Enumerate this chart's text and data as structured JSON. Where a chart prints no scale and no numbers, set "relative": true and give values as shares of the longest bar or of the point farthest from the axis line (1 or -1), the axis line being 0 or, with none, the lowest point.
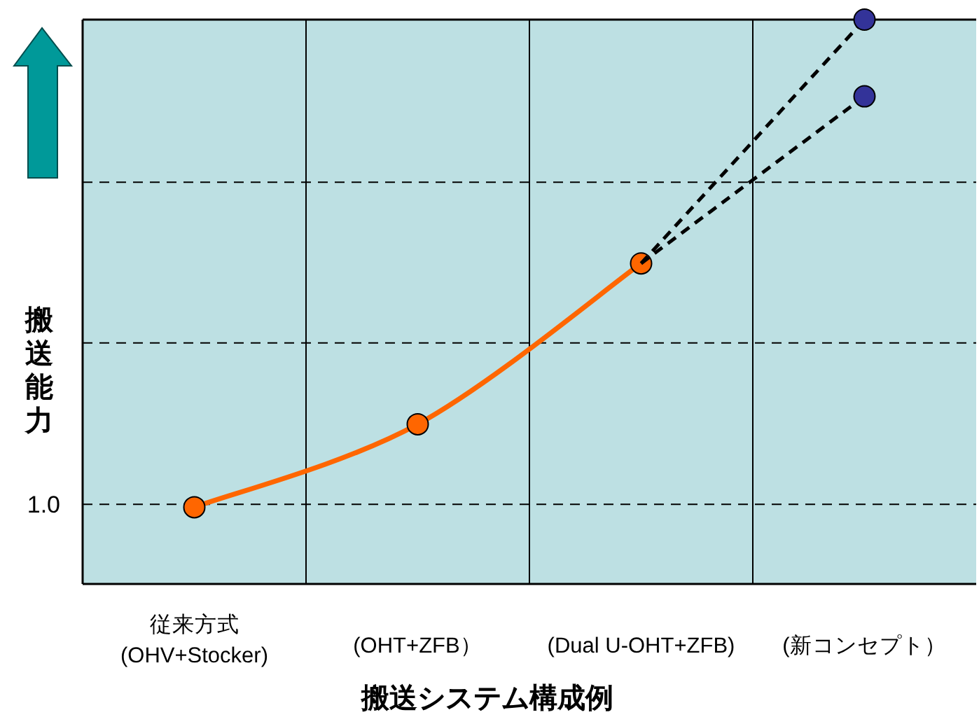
{
  "chart_data": {
    "type": "line",
    "relative": true,
    "xlabel": "搬送システム構成例",
    "ylabel": "搬送能力",
    "categories": [
      "従来方式\n(OHV+Stocker)",
      "(OHT+ZFB）",
      "(Dual U-OHT+ZFB)",
      "(新コンセプト）"
    ],
    "series": [
      {
        "color": "#ff6600",
        "marker": "circle",
        "line_style": "solid",
        "values": [
          0.136,
          0.283,
          0.568,
          null
        ]
      },
      {
        "color": "#000000",
        "line_style": "dashed",
        "values": [
          null,
          null,
          0.568,
          1.0
        ]
      },
      {
        "color": "#000000",
        "line_style": "dashed",
        "values": [
          null,
          null,
          0.568,
          0.864
        ]
      },
      {
        "type": "scatter",
        "color": "#333399",
        "marker": "circle",
        "x": [
          "(新コンセプト）",
          "(新コンセプト）"
        ],
        "values": [
          1.0,
          0.864
        ]
      }
    ],
    "ref_lines": [
      {
        "axis": "y",
        "value": 0.141,
        "label": null,
        "color": "#000000",
        "line_style": "dashed"
      },
      {
        "axis": "y",
        "value": 0.427,
        "label": null,
        "color": "#000000",
        "line_style": "dashed"
      },
      {
        "axis": "y",
        "value": 0.712,
        "label": null,
        "color": "#000000",
        "line_style": "dashed"
      }
    ],
    "annotations": [
      "1.0"
    ],
    "grid": "x"
  }
}
